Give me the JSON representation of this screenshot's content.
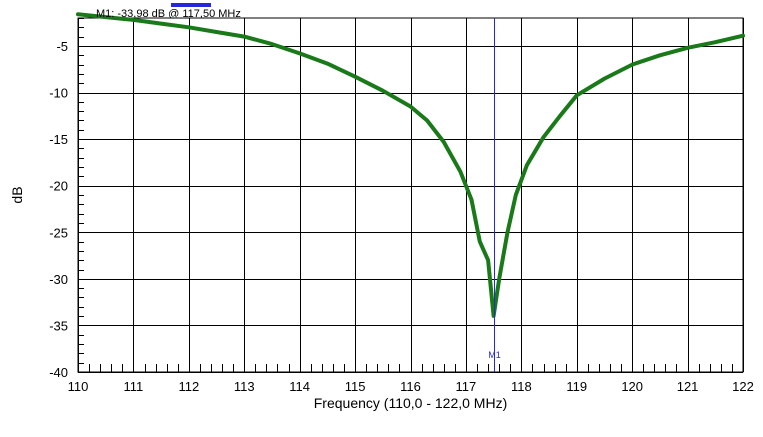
{
  "colors": {
    "trace": "#1a7a1a",
    "marker": "#2727d9",
    "grid": "#000000",
    "background": "#ffffff"
  },
  "marker": {
    "readout": "M1: -33,98 dB @ 117,50 MHz",
    "label": "M1",
    "x": 117.5,
    "y": -33.98
  },
  "chart_data": {
    "type": "line",
    "title": "",
    "xlabel": "Frequency (110,0 - 122,0 MHz)",
    "ylabel": "dB",
    "xlim": [
      110,
      122
    ],
    "ylim": [
      -40,
      -2
    ],
    "xticks": [
      110,
      111,
      112,
      113,
      114,
      115,
      116,
      117,
      118,
      119,
      120,
      121,
      122
    ],
    "yticks": [
      -5,
      -10,
      -15,
      -20,
      -25,
      -30,
      -35,
      -40
    ],
    "xtick_labels": [
      "110",
      "111",
      "112",
      "113",
      "114",
      "115",
      "116",
      "117",
      "118",
      "119",
      "120",
      "121",
      "122"
    ],
    "ytick_labels": [
      "-5",
      "-10",
      "-15",
      "-20",
      "-25",
      "-30",
      "-35",
      "-40"
    ],
    "grid": true,
    "series": [
      {
        "x": [
          110,
          110.5,
          111,
          111.5,
          112,
          112.5,
          113,
          113.5,
          114,
          114.5,
          115,
          115.5,
          116,
          116.3,
          116.6,
          116.9,
          117.1,
          117.25,
          117.4,
          117.5,
          117.6,
          117.75,
          117.9,
          118.1,
          118.4,
          118.7,
          119,
          119.5,
          120,
          120.5,
          121,
          121.5,
          122
        ],
        "y": [
          -1.6,
          -1.9,
          -2.2,
          -2.6,
          -3.0,
          -3.5,
          -4.0,
          -4.8,
          -5.8,
          -6.9,
          -8.3,
          -9.8,
          -11.5,
          -13.0,
          -15.3,
          -18.5,
          -21.5,
          -26.0,
          -28.0,
          -33.98,
          -30.0,
          -25.0,
          -21.0,
          -17.8,
          -14.8,
          -12.5,
          -10.3,
          -8.5,
          -7.0,
          -6.0,
          -5.2,
          -4.6,
          -3.9
        ]
      }
    ]
  }
}
